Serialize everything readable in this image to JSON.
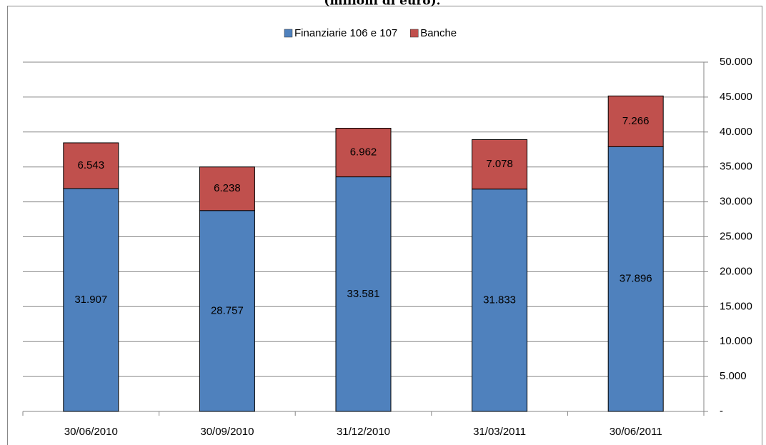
{
  "chart_data": {
    "type": "stacked_bar",
    "title": "(milioni di euro).",
    "categories": [
      "30/06/2010",
      "30/09/2010",
      "31/12/2010",
      "31/03/2011",
      "30/06/2011"
    ],
    "series": [
      {
        "name": "Finanziarie 106 e 107",
        "color": "#4f81bd",
        "values": [
          31907,
          28757,
          33581,
          31833,
          37896
        ],
        "value_labels": [
          "31.907",
          "28.757",
          "33.581",
          "31.833",
          "37.896"
        ]
      },
      {
        "name": "Banche",
        "color": "#c0504d",
        "values": [
          6543,
          6238,
          6962,
          7078,
          7266
        ],
        "value_labels": [
          "6.543",
          "6.238",
          "6.962",
          "7.078",
          "7.266"
        ]
      }
    ],
    "ylim": [
      0,
      50000
    ],
    "yticks": [
      {
        "value": 0,
        "label": "-"
      },
      {
        "value": 5000,
        "label": "5.000"
      },
      {
        "value": 10000,
        "label": "10.000"
      },
      {
        "value": 15000,
        "label": "15.000"
      },
      {
        "value": 20000,
        "label": "20.000"
      },
      {
        "value": 25000,
        "label": "25.000"
      },
      {
        "value": 30000,
        "label": "30.000"
      },
      {
        "value": 35000,
        "label": "35.000"
      },
      {
        "value": 40000,
        "label": "40.000"
      },
      {
        "value": 45000,
        "label": "45.000"
      },
      {
        "value": 50000,
        "label": "50.000"
      }
    ],
    "grid": true,
    "y_axis_side": "right",
    "legend": "top"
  }
}
